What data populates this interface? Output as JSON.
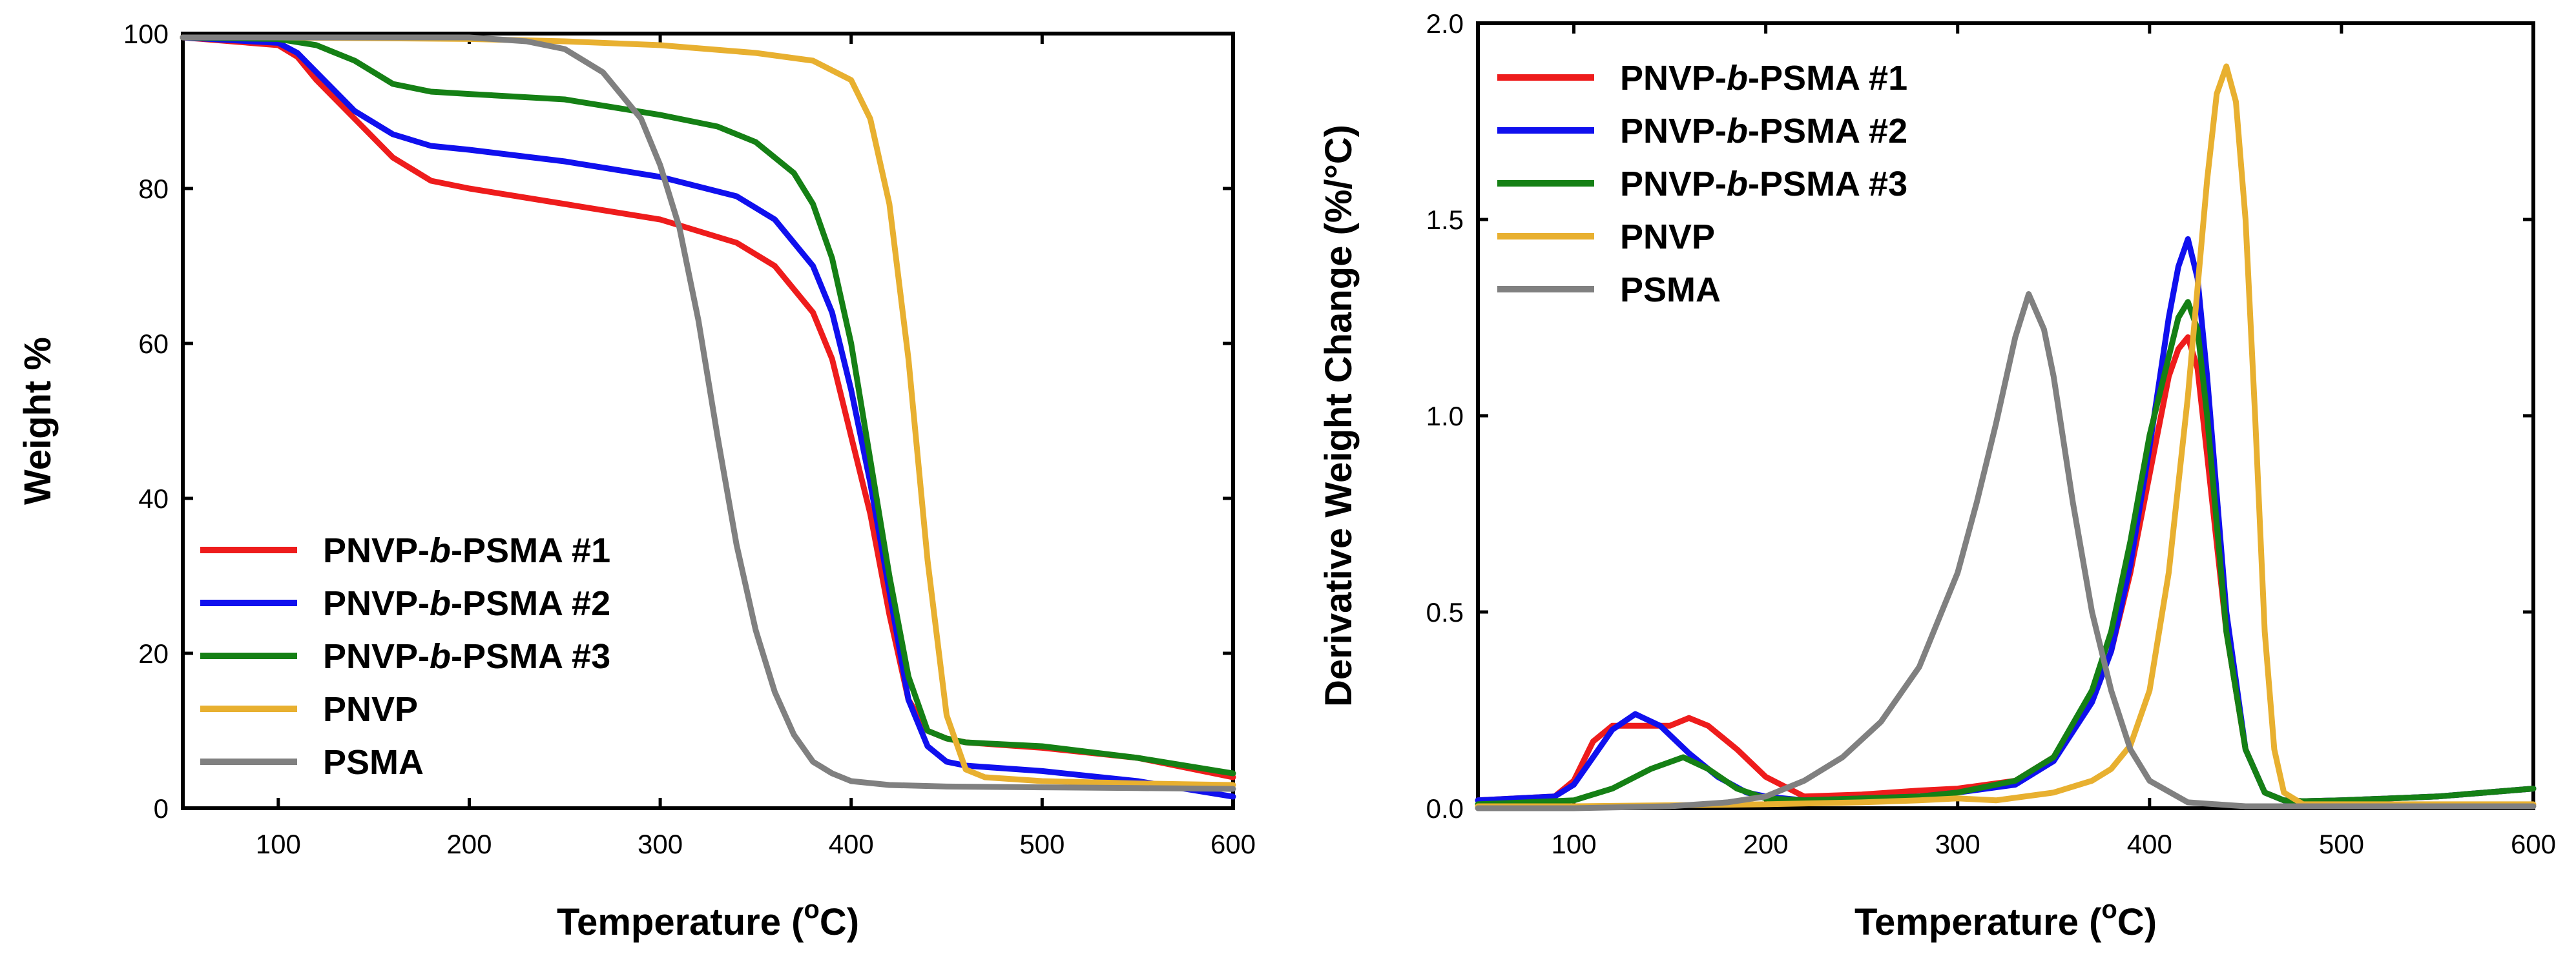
{
  "chart_data": [
    {
      "type": "line",
      "xlabel_pre": "Temperature (",
      "xlabel_sup": "o",
      "xlabel_post": "C)",
      "ylabel": "Weight %",
      "xlim": [
        50,
        600
      ],
      "ylim": [
        0,
        100
      ],
      "xticks": [
        100,
        200,
        300,
        400,
        500,
        600
      ],
      "yticks": [
        0,
        20,
        40,
        60,
        80,
        100
      ],
      "legend_position": "bottom-left",
      "series": [
        {
          "name_pre": "PNVP-",
          "name_italic": "b",
          "name_post": "-PSMA #1",
          "color": "#ee1c1c",
          "x": [
            50,
            100,
            110,
            120,
            140,
            160,
            180,
            200,
            250,
            300,
            340,
            360,
            380,
            390,
            400,
            410,
            420,
            430,
            440,
            450,
            460,
            500,
            550,
            600
          ],
          "y": [
            99.5,
            98.5,
            97,
            94,
            89,
            84,
            81,
            80,
            78,
            76,
            73,
            70,
            64,
            58,
            48,
            38,
            25,
            14,
            10,
            9,
            8.5,
            7.8,
            6.5,
            4
          ]
        },
        {
          "name_pre": "PNVP-",
          "name_italic": "b",
          "name_post": "-PSMA #2",
          "color": "#1010ee",
          "x": [
            50,
            100,
            110,
            120,
            140,
            160,
            180,
            200,
            250,
            300,
            340,
            360,
            380,
            390,
            400,
            410,
            420,
            430,
            440,
            450,
            460,
            500,
            550,
            600
          ],
          "y": [
            99.5,
            98.8,
            97.5,
            95,
            90,
            87,
            85.5,
            85,
            83.5,
            81.5,
            79,
            76,
            70,
            64,
            54,
            42,
            28,
            14,
            8,
            6,
            5.5,
            4.8,
            3.5,
            1.5
          ]
        },
        {
          "name_pre": "PNVP-",
          "name_italic": "b",
          "name_post": "-PSMA #3",
          "color": "#158015",
          "x": [
            50,
            100,
            120,
            140,
            160,
            180,
            200,
            250,
            300,
            330,
            350,
            370,
            380,
            390,
            400,
            410,
            420,
            430,
            440,
            450,
            460,
            500,
            550,
            600
          ],
          "y": [
            99.5,
            99.3,
            98.5,
            96.5,
            93.5,
            92.5,
            92.2,
            91.5,
            89.5,
            88,
            86,
            82,
            78,
            71,
            60,
            45,
            30,
            17,
            10,
            9,
            8.5,
            8,
            6.5,
            4.5
          ]
        },
        {
          "name_pre": "PNVP",
          "name_italic": "",
          "name_post": "",
          "color": "#e8b030",
          "x": [
            50,
            100,
            200,
            250,
            300,
            350,
            380,
            400,
            410,
            420,
            430,
            440,
            450,
            460,
            470,
            500,
            550,
            600
          ],
          "y": [
            99.5,
            99.5,
            99.3,
            99,
            98.5,
            97.5,
            96.5,
            94,
            89,
            78,
            58,
            32,
            12,
            5,
            4,
            3.5,
            3.2,
            3
          ]
        },
        {
          "name_pre": "PSMA",
          "name_italic": "",
          "name_post": "",
          "color": "#808080",
          "x": [
            50,
            100,
            150,
            200,
            230,
            250,
            270,
            290,
            300,
            310,
            320,
            330,
            340,
            350,
            360,
            370,
            380,
            390,
            400,
            420,
            450,
            500,
            550,
            600
          ],
          "y": [
            99.5,
            99.5,
            99.5,
            99.5,
            99,
            98,
            95,
            89,
            83,
            75,
            63,
            48,
            34,
            23,
            15,
            9.5,
            6,
            4.5,
            3.5,
            3,
            2.8,
            2.7,
            2.6,
            2.5
          ]
        }
      ]
    },
    {
      "type": "line",
      "xlabel_pre": "Temperature (",
      "xlabel_sup": "o",
      "xlabel_post": "C)",
      "ylabel": "Derivative Weight Change (%/°C)",
      "xlim": [
        50,
        600
      ],
      "ylim": [
        0,
        2.0
      ],
      "xticks": [
        100,
        200,
        300,
        400,
        500,
        600
      ],
      "yticks": [
        "0.0",
        "0.5",
        "1.0",
        "1.5",
        "2.0"
      ],
      "legend_position": "top-left",
      "series": [
        {
          "name_pre": "PNVP-",
          "name_italic": "b",
          "name_post": "-PSMA #1",
          "color": "#ee1c1c",
          "x": [
            50,
            90,
            100,
            110,
            120,
            135,
            150,
            160,
            170,
            185,
            200,
            220,
            250,
            280,
            300,
            330,
            350,
            370,
            380,
            390,
            400,
            410,
            415,
            420,
            425,
            430,
            440,
            450,
            460,
            470,
            480,
            500,
            550,
            600
          ],
          "y": [
            0.02,
            0.03,
            0.07,
            0.17,
            0.21,
            0.21,
            0.21,
            0.23,
            0.21,
            0.15,
            0.08,
            0.03,
            0.035,
            0.045,
            0.05,
            0.07,
            0.13,
            0.28,
            0.4,
            0.6,
            0.85,
            1.1,
            1.17,
            1.2,
            1.12,
            0.9,
            0.45,
            0.15,
            0.04,
            0.02,
            0.018,
            0.02,
            0.03,
            0.05
          ]
        },
        {
          "name_pre": "PNVP-",
          "name_italic": "b",
          "name_post": "-PSMA #2",
          "color": "#1010ee",
          "x": [
            50,
            90,
            100,
            110,
            120,
            132,
            145,
            160,
            175,
            190,
            200,
            220,
            250,
            280,
            300,
            330,
            350,
            370,
            380,
            390,
            400,
            410,
            415,
            420,
            425,
            430,
            440,
            450,
            460,
            470,
            480,
            500,
            550,
            600
          ],
          "y": [
            0.02,
            0.03,
            0.06,
            0.13,
            0.2,
            0.24,
            0.21,
            0.14,
            0.08,
            0.04,
            0.03,
            0.02,
            0.025,
            0.03,
            0.04,
            0.06,
            0.12,
            0.27,
            0.4,
            0.62,
            0.92,
            1.25,
            1.38,
            1.45,
            1.35,
            1.1,
            0.5,
            0.15,
            0.04,
            0.02,
            0.018,
            0.02,
            0.03,
            0.05
          ]
        },
        {
          "name_pre": "PNVP-",
          "name_italic": "b",
          "name_post": "-PSMA #3",
          "color": "#158015",
          "x": [
            50,
            100,
            120,
            140,
            157,
            170,
            185,
            200,
            220,
            250,
            280,
            300,
            330,
            350,
            370,
            380,
            390,
            400,
            410,
            415,
            420,
            425,
            430,
            440,
            450,
            460,
            470,
            480,
            500,
            550,
            600
          ],
          "y": [
            0.01,
            0.02,
            0.05,
            0.1,
            0.13,
            0.1,
            0.05,
            0.025,
            0.02,
            0.025,
            0.03,
            0.04,
            0.07,
            0.13,
            0.3,
            0.45,
            0.68,
            0.95,
            1.15,
            1.25,
            1.29,
            1.22,
            1.0,
            0.45,
            0.15,
            0.04,
            0.02,
            0.018,
            0.02,
            0.03,
            0.05
          ]
        },
        {
          "name_pre": "PNVP",
          "name_italic": "",
          "name_post": "",
          "color": "#e8b030",
          "x": [
            50,
            100,
            200,
            250,
            280,
            300,
            320,
            350,
            370,
            380,
            390,
            400,
            410,
            420,
            430,
            435,
            440,
            445,
            450,
            455,
            460,
            465,
            470,
            480,
            500,
            550,
            600
          ],
          "y": [
            0.005,
            0.005,
            0.01,
            0.015,
            0.02,
            0.025,
            0.02,
            0.04,
            0.07,
            0.1,
            0.16,
            0.3,
            0.6,
            1.05,
            1.6,
            1.82,
            1.89,
            1.8,
            1.5,
            1.0,
            0.45,
            0.15,
            0.04,
            0.01,
            0.01,
            0.01,
            0.01
          ]
        },
        {
          "name_pre": "PSMA",
          "name_italic": "",
          "name_post": "",
          "color": "#808080",
          "x": [
            50,
            100,
            150,
            180,
            200,
            220,
            240,
            260,
            280,
            300,
            310,
            320,
            330,
            337,
            345,
            350,
            360,
            370,
            380,
            390,
            400,
            420,
            450,
            500,
            550,
            600
          ],
          "y": [
            0,
            0,
            0.005,
            0.015,
            0.03,
            0.07,
            0.13,
            0.22,
            0.36,
            0.6,
            0.78,
            0.98,
            1.2,
            1.31,
            1.22,
            1.1,
            0.78,
            0.5,
            0.3,
            0.15,
            0.07,
            0.015,
            0.005,
            0.005,
            0.005,
            0.005
          ]
        }
      ]
    }
  ]
}
